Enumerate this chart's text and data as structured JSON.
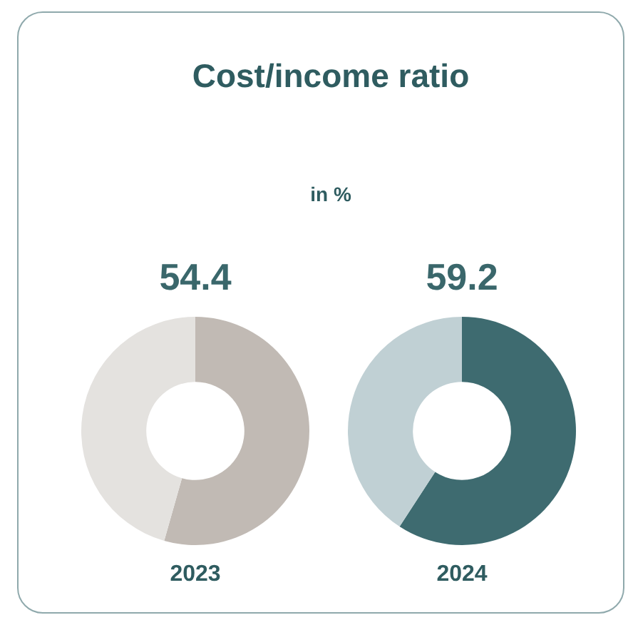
{
  "chart_data": [
    {
      "type": "other",
      "title": "Cost/income ratio",
      "subtitle": "in %"
    },
    {
      "type": "donut",
      "xlabel": "2023",
      "categories": [
        null,
        null
      ],
      "values": [
        54.4,
        45.6
      ],
      "colors": [
        "#c1bab4",
        "#e4e2df"
      ],
      "value_labels": [
        "54.4",
        null
      ]
    },
    {
      "type": "donut",
      "xlabel": "2024",
      "categories": [
        null,
        null
      ],
      "values": [
        59.2,
        40.8
      ],
      "colors": [
        "#3e6b70",
        "#c0d0d4"
      ],
      "value_labels": [
        "59.2",
        null
      ]
    }
  ]
}
